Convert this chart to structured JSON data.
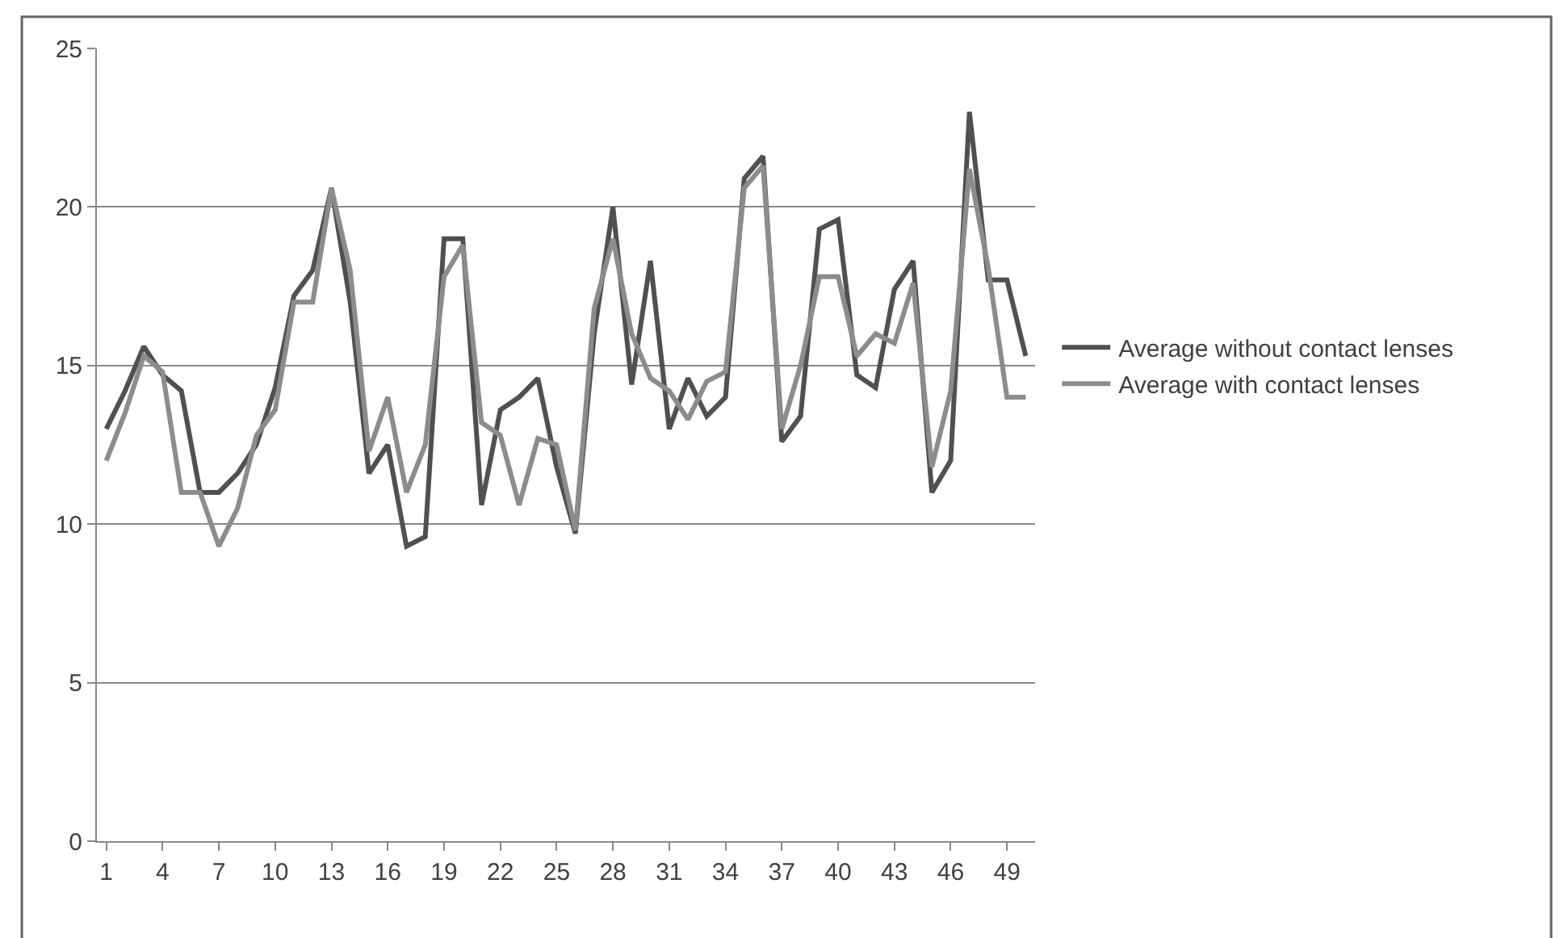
{
  "chart_data": {
    "type": "line",
    "x": [
      1,
      2,
      3,
      4,
      5,
      6,
      7,
      8,
      9,
      10,
      11,
      12,
      13,
      14,
      15,
      16,
      17,
      18,
      19,
      20,
      21,
      22,
      23,
      24,
      25,
      26,
      27,
      28,
      29,
      30,
      31,
      32,
      33,
      34,
      35,
      36,
      37,
      38,
      39,
      40,
      41,
      42,
      43,
      44,
      45,
      46,
      47,
      48,
      49,
      50
    ],
    "series": [
      {
        "name": "Average without contact lenses",
        "color": "#505050",
        "values": [
          13,
          14.2,
          15.6,
          14.7,
          14.2,
          11,
          11,
          11.6,
          12.5,
          14.3,
          17.2,
          18,
          20.6,
          17,
          11.6,
          12.5,
          9.3,
          9.6,
          19,
          19,
          10.6,
          13.6,
          14,
          14.6,
          11.8,
          9.7,
          16,
          20,
          14.4,
          18.3,
          13,
          14.6,
          13.4,
          14,
          20.9,
          21.6,
          12.6,
          13.4,
          19.3,
          19.6,
          14.7,
          14.3,
          17.4,
          18.3,
          11,
          12,
          23,
          17.7,
          17.7,
          15.3
        ]
      },
      {
        "name": "Average with contact lenses",
        "color": "#8c8c8c",
        "values": [
          12,
          13.5,
          15.3,
          14.8,
          11,
          11,
          9.3,
          10.5,
          12.8,
          13.6,
          17,
          17,
          20.6,
          18,
          12.3,
          14,
          11,
          12.5,
          17.8,
          18.8,
          13.2,
          12.8,
          10.6,
          12.7,
          12.5,
          9.8,
          16.8,
          19,
          16,
          14.6,
          14.2,
          13.3,
          14.5,
          14.8,
          20.6,
          21.3,
          13,
          15,
          17.8,
          17.8,
          15.3,
          16,
          15.7,
          17.6,
          11.8,
          14.2,
          21.2,
          18.1,
          14,
          14
        ]
      }
    ],
    "xlim": [
      0.5,
      50.5
    ],
    "xticks": [
      1,
      4,
      7,
      10,
      13,
      16,
      19,
      22,
      25,
      28,
      31,
      34,
      37,
      40,
      43,
      46,
      49
    ],
    "ylim": [
      0,
      25
    ],
    "yticks": [
      0,
      5,
      10,
      15,
      20,
      25
    ],
    "grid": "y",
    "legend": "right",
    "marker": "none",
    "line_style": "solid"
  }
}
